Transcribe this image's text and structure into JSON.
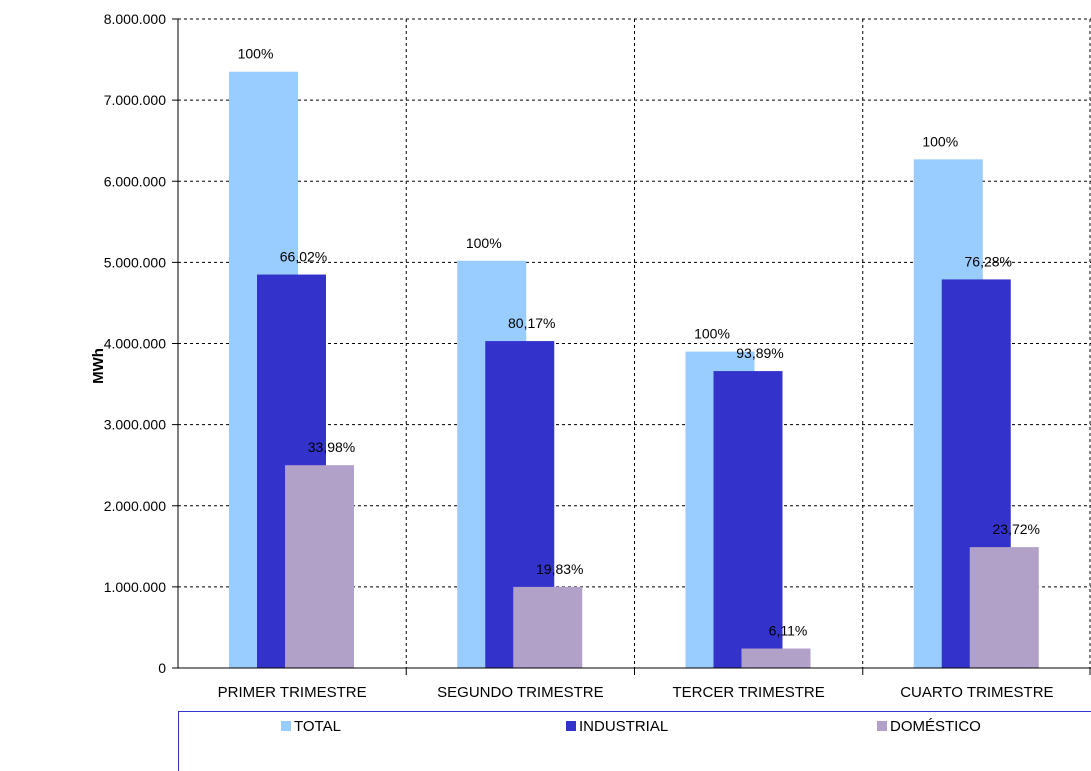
{
  "chart_data": {
    "type": "bar",
    "title": "",
    "xlabel": "",
    "ylabel": "MWh",
    "ylim": [
      0,
      8000000
    ],
    "y_ticks": [
      {
        "value": 0,
        "label": "0"
      },
      {
        "value": 1000000,
        "label": "1.000.000"
      },
      {
        "value": 2000000,
        "label": "2.000.000"
      },
      {
        "value": 3000000,
        "label": "3.000.000"
      },
      {
        "value": 4000000,
        "label": "4.000.000"
      },
      {
        "value": 5000000,
        "label": "5.000.000"
      },
      {
        "value": 6000000,
        "label": "6.000.000"
      },
      {
        "value": 7000000,
        "label": "7.000.000"
      },
      {
        "value": 8000000,
        "label": "8.000.000"
      }
    ],
    "categories": [
      "PRIMER TRIMESTRE",
      "SEGUNDO TRIMESTRE",
      "TERCER TRIMESTRE",
      "CUARTO TRIMESTRE"
    ],
    "series": [
      {
        "name": "TOTAL",
        "color": "#99ccff",
        "values": [
          7350000,
          5020000,
          3900000,
          6270000
        ],
        "labels": [
          "100%",
          "100%",
          "100%",
          "100%"
        ]
      },
      {
        "name": "INDUSTRIAL",
        "color": "#3333cc",
        "values": [
          4850000,
          4030000,
          3660000,
          4790000
        ],
        "labels": [
          "66,02%",
          "80,17%",
          "93,89%",
          "76,28%"
        ]
      },
      {
        "name": "DOMÉSTICO",
        "color": "#b1a0c7",
        "values": [
          2500000,
          1000000,
          240000,
          1490000
        ],
        "labels": [
          "33,98%",
          "19,83%",
          "6,11%",
          "23,72%"
        ]
      }
    ],
    "grid": true,
    "legend_position": "bottom"
  }
}
